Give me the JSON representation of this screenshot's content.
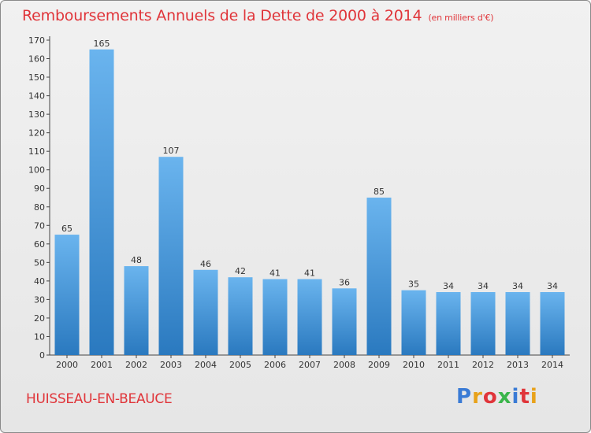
{
  "header": {
    "title": "Remboursements Annuels de la Dette de 2000 à 2014",
    "unit": "(en milliers d'€)"
  },
  "footer": {
    "commune": "HUISSEAU-EN-BEAUCE",
    "logo": "Proxiti",
    "logo_colors": [
      "#3a7bd5",
      "#e8a21a",
      "#e0353a",
      "#3ab54a",
      "#3a7bd5",
      "#e0353a",
      "#e8a21a"
    ]
  },
  "chart_data": {
    "type": "bar",
    "categories": [
      "2000",
      "2001",
      "2002",
      "2003",
      "2004",
      "2005",
      "2006",
      "2007",
      "2008",
      "2009",
      "2010",
      "2011",
      "2012",
      "2013",
      "2014"
    ],
    "values": [
      65,
      165,
      48,
      107,
      46,
      42,
      41,
      41,
      36,
      85,
      35,
      34,
      34,
      34,
      34
    ],
    "title": "Remboursements Annuels de la Dette de 2000 à 2014",
    "ylabel": "",
    "xlabel": "",
    "ylim": [
      0,
      170
    ],
    "yticks": [
      0,
      10,
      20,
      30,
      40,
      50,
      60,
      70,
      80,
      90,
      100,
      110,
      120,
      130,
      140,
      150,
      160,
      170
    ],
    "grid": false,
    "bar_color_top": "#6ab4ee",
    "bar_color_bottom": "#2a79bf"
  }
}
